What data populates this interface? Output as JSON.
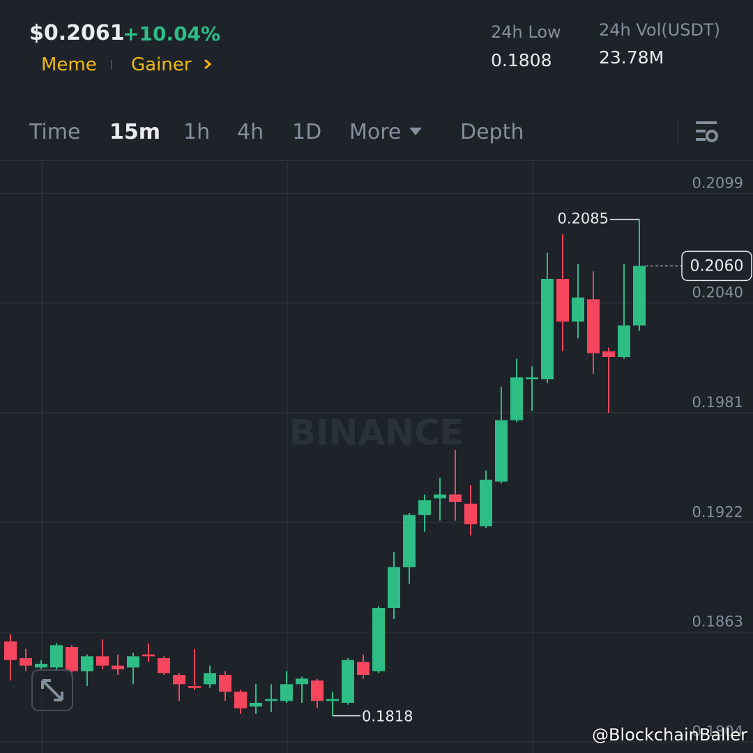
{
  "header": {
    "price": "$0.2061",
    "change": "+10.04%",
    "tags": [
      "Meme",
      "Gainer"
    ],
    "low_label": "24h Low",
    "low_value": "0.1808",
    "vol_label": "24h Vol(USDT)",
    "vol_value": "23.78M"
  },
  "tabs": [
    "Time",
    "15m",
    "1h",
    "4h",
    "1D",
    "More",
    "Depth"
  ],
  "watermark": "BINANCE",
  "credit": "@BlockchainBaller",
  "chart_data": {
    "type": "candlestick",
    "open": [
      0.1858,
      0.1849,
      0.1844,
      0.1844,
      0.1855,
      0.1842,
      0.185,
      0.1845,
      0.1844,
      0.1851,
      0.1849,
      0.184,
      0.1834,
      0.1835,
      0.184,
      0.1831,
      0.1823,
      0.1826,
      0.1826,
      0.1835,
      0.1837,
      0.1826,
      0.1825,
      0.1847,
      0.1842,
      0.1876,
      0.1898,
      0.1926,
      0.1935,
      0.1937,
      0.1932,
      0.192,
      0.1944,
      0.1977,
      0.1999,
      0.1999,
      0.2053,
      0.203,
      0.2042,
      0.2014,
      0.2011,
      0.2028
    ],
    "high": [
      0.1862,
      0.1854,
      0.1848,
      0.1857,
      0.1856,
      0.1851,
      0.1859,
      0.1851,
      0.1852,
      0.1857,
      0.185,
      0.1841,
      0.1854,
      0.1845,
      0.1842,
      0.1832,
      0.1835,
      0.1835,
      0.1842,
      0.1839,
      0.1838,
      0.1831,
      0.1849,
      0.1851,
      0.1877,
      0.1906,
      0.1927,
      0.1937,
      0.1946,
      0.1961,
      0.1942,
      0.195,
      0.1995,
      0.201,
      0.2006,
      0.2067,
      0.2077,
      0.2061,
      0.2057,
      0.2016,
      0.2061,
      0.2085
    ],
    "low": [
      0.1837,
      0.1842,
      0.1843,
      0.1842,
      0.1839,
      0.1834,
      0.1843,
      0.184,
      0.1835,
      0.1847,
      0.184,
      0.1826,
      0.1832,
      0.1833,
      0.1826,
      0.1819,
      0.1819,
      0.182,
      0.1825,
      0.1825,
      0.1822,
      0.1818,
      0.1824,
      0.1838,
      0.1841,
      0.187,
      0.1889,
      0.1917,
      0.1923,
      0.1923,
      0.1915,
      0.1919,
      0.1943,
      0.1976,
      0.1982,
      0.1997,
      0.2014,
      0.2021,
      0.2002,
      0.1981,
      0.201,
      0.2025
    ],
    "close": [
      0.1848,
      0.1845,
      0.1846,
      0.1856,
      0.1842,
      0.185,
      0.1845,
      0.1843,
      0.185,
      0.185,
      0.1841,
      0.1835,
      0.1833,
      0.1841,
      0.1831,
      0.1822,
      0.1825,
      0.1827,
      0.1835,
      0.1838,
      0.1826,
      0.1827,
      0.1848,
      0.184,
      0.1876,
      0.1898,
      0.1926,
      0.1934,
      0.1937,
      0.1933,
      0.1921,
      0.1945,
      0.1977,
      0.2,
      0.2,
      0.2053,
      0.203,
      0.2043,
      0.2013,
      0.2011,
      0.2028,
      0.206
    ],
    "colors": {
      "up": "#2ebd85",
      "down": "#f6465d"
    },
    "ylim": [
      0.1798,
      0.2116
    ],
    "yticks": [
      0.2099,
      {
        "value": 0.204,
        "label": "0.2040"
      },
      0.1981,
      0.1922,
      0.1863,
      0.1804
    ],
    "grid": true,
    "high_marker": 0.2085,
    "low_marker": 0.1818,
    "last_price": {
      "value": 0.206,
      "label": "0.2060"
    }
  }
}
